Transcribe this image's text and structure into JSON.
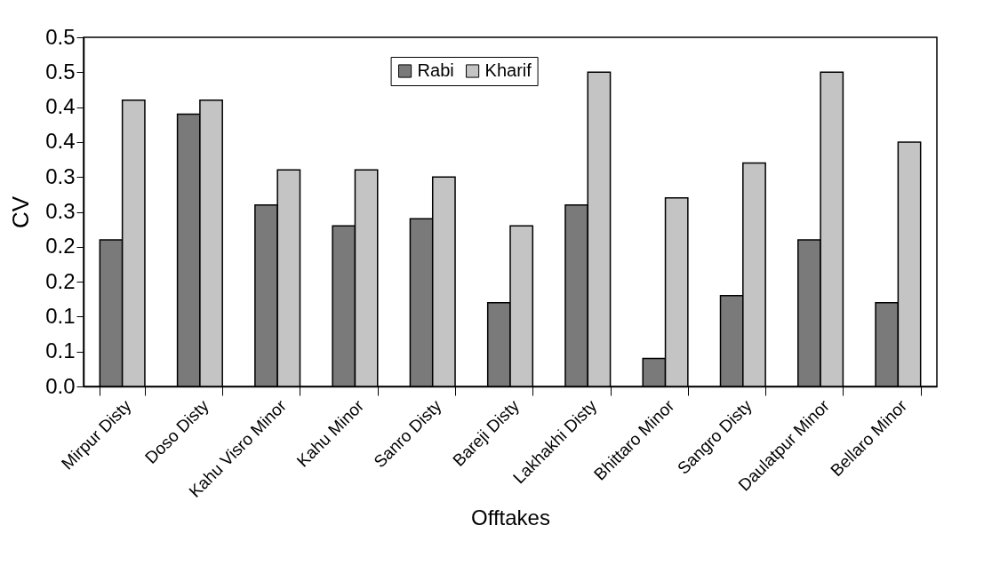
{
  "chart_data": {
    "type": "bar",
    "xlabel": "Offtakes",
    "ylabel": "CV",
    "categories": [
      "Mirpur Disty",
      "Doso  Disty",
      "Kahu Visro Minor",
      "Kahu Minor",
      "Sanro Disty",
      "Bareji Disty",
      "Lakhakhi Disty",
      "Bhittaro Minor",
      "Sangro Disty",
      "Daulatpur Minor",
      "Bellaro Minor"
    ],
    "series": [
      {
        "name": "Rabi",
        "color": "#7a7a7a",
        "values": [
          0.21,
          0.39,
          0.26,
          0.23,
          0.24,
          0.12,
          0.26,
          0.04,
          0.13,
          0.21,
          0.12
        ]
      },
      {
        "name": "Kharif",
        "color": "#c4c4c4",
        "values": [
          0.41,
          0.41,
          0.31,
          0.31,
          0.3,
          0.23,
          0.45,
          0.27,
          0.32,
          0.45,
          0.35
        ]
      }
    ],
    "ylim": [
      0,
      0.5
    ],
    "yticks": [
      {
        "value": 0,
        "label": "0.0"
      },
      {
        "value": 0.05,
        "label": "0.1"
      },
      {
        "value": 0.1,
        "label": "0.1"
      },
      {
        "value": 0.15,
        "label": "0.2"
      },
      {
        "value": 0.2,
        "label": "0.2"
      },
      {
        "value": 0.25,
        "label": "0.3"
      },
      {
        "value": 0.3,
        "label": "0.3"
      },
      {
        "value": 0.35,
        "label": "0.4"
      },
      {
        "value": 0.4,
        "label": "0.4"
      },
      {
        "value": 0.45,
        "label": "0.5"
      },
      {
        "value": 0.5,
        "label": "0.5"
      }
    ],
    "grid": false,
    "legend": "top"
  }
}
